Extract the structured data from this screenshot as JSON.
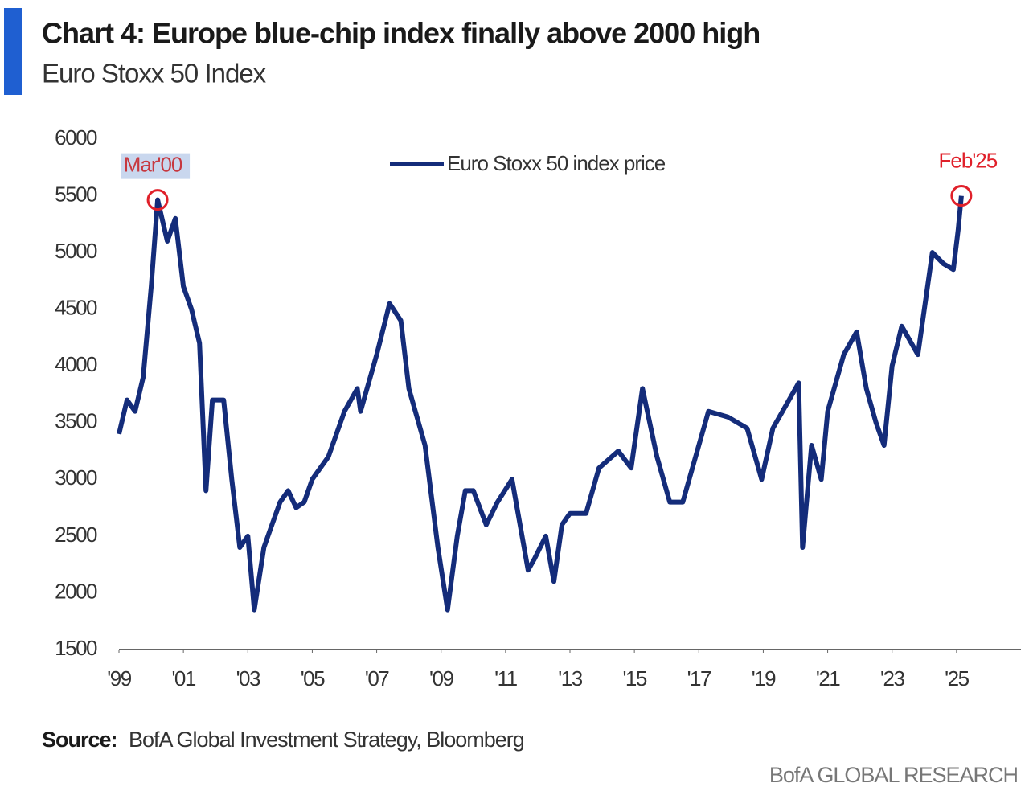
{
  "chart_data": {
    "type": "line",
    "title": "Chart 4: Europe blue-chip index finally above 2000 high",
    "subtitle": "Euro Stoxx 50 Index",
    "source_label": "Source:",
    "source": "BofA Global Investment Strategy, Bloomberg",
    "brand": "BofA GLOBAL RESEARCH",
    "x": [
      1999.0,
      1999.25,
      1999.5,
      1999.75,
      2000.0,
      2000.2,
      2000.5,
      2000.75,
      2001.0,
      2001.25,
      2001.5,
      2001.7,
      2001.9,
      2002.25,
      2002.5,
      2002.75,
      2003.0,
      2003.2,
      2003.5,
      2003.75,
      2004.0,
      2004.25,
      2004.5,
      2004.75,
      2005.0,
      2005.5,
      2006.0,
      2006.4,
      2006.5,
      2007.0,
      2007.4,
      2007.75,
      2008.0,
      2008.5,
      2008.9,
      2009.2,
      2009.5,
      2009.75,
      2010.0,
      2010.4,
      2010.75,
      2011.2,
      2011.7,
      2011.9,
      2012.25,
      2012.5,
      2012.75,
      2013.0,
      2013.5,
      2013.9,
      2014.5,
      2014.9,
      2015.25,
      2015.7,
      2016.1,
      2016.5,
      2016.9,
      2017.3,
      2017.9,
      2018.5,
      2018.95,
      2019.3,
      2019.9,
      2020.1,
      2020.22,
      2020.5,
      2020.8,
      2021.0,
      2021.5,
      2021.9,
      2022.2,
      2022.5,
      2022.75,
      2023.0,
      2023.3,
      2023.8,
      2024.0,
      2024.25,
      2024.6,
      2024.9,
      2025.05,
      2025.15
    ],
    "series": [
      {
        "name": "Euro Stoxx 50 index price",
        "color": "#142c7a",
        "values": [
          3400,
          3700,
          3600,
          3900,
          4700,
          5464,
          5100,
          5300,
          4700,
          4500,
          4200,
          2900,
          3700,
          3700,
          3000,
          2400,
          2500,
          1850,
          2400,
          2600,
          2800,
          2900,
          2750,
          2800,
          3000,
          3200,
          3600,
          3800,
          3600,
          4100,
          4550,
          4400,
          3800,
          3300,
          2400,
          1850,
          2500,
          2900,
          2900,
          2600,
          2800,
          3000,
          2200,
          2300,
          2500,
          2100,
          2600,
          2700,
          2700,
          3100,
          3250,
          3100,
          3800,
          3200,
          2800,
          2800,
          3200,
          3600,
          3550,
          3450,
          3000,
          3450,
          3750,
          3850,
          2400,
          3300,
          3000,
          3600,
          4100,
          4300,
          3800,
          3500,
          3300,
          4000,
          4350,
          4100,
          4500,
          5000,
          4900,
          4850,
          5200,
          5500
        ]
      }
    ],
    "annotations": [
      {
        "text": "Mar'00",
        "x": 2000.2,
        "y": 5464
      },
      {
        "text": "Feb'25",
        "x": 2025.15,
        "y": 5500
      }
    ],
    "xlim": [
      1999,
      2027
    ],
    "xticks": [
      {
        "value": 1999,
        "label": "'99"
      },
      {
        "value": 2001,
        "label": "'01"
      },
      {
        "value": 2003,
        "label": "'03"
      },
      {
        "value": 2005,
        "label": "'05"
      },
      {
        "value": 2007,
        "label": "'07"
      },
      {
        "value": 2009,
        "label": "'09"
      },
      {
        "value": 2011,
        "label": "'11"
      },
      {
        "value": 2013,
        "label": "'13"
      },
      {
        "value": 2015,
        "label": "'15"
      },
      {
        "value": 2017,
        "label": "'17"
      },
      {
        "value": 2019,
        "label": "'19"
      },
      {
        "value": 2021,
        "label": "'21"
      },
      {
        "value": 2023,
        "label": "'23"
      },
      {
        "value": 2025,
        "label": "'25"
      }
    ],
    "ylim": [
      1500,
      6000
    ],
    "yticks": [
      1500,
      2000,
      2500,
      3000,
      3500,
      4000,
      4500,
      5000,
      5500,
      6000
    ],
    "grid": false,
    "legend": "top"
  }
}
